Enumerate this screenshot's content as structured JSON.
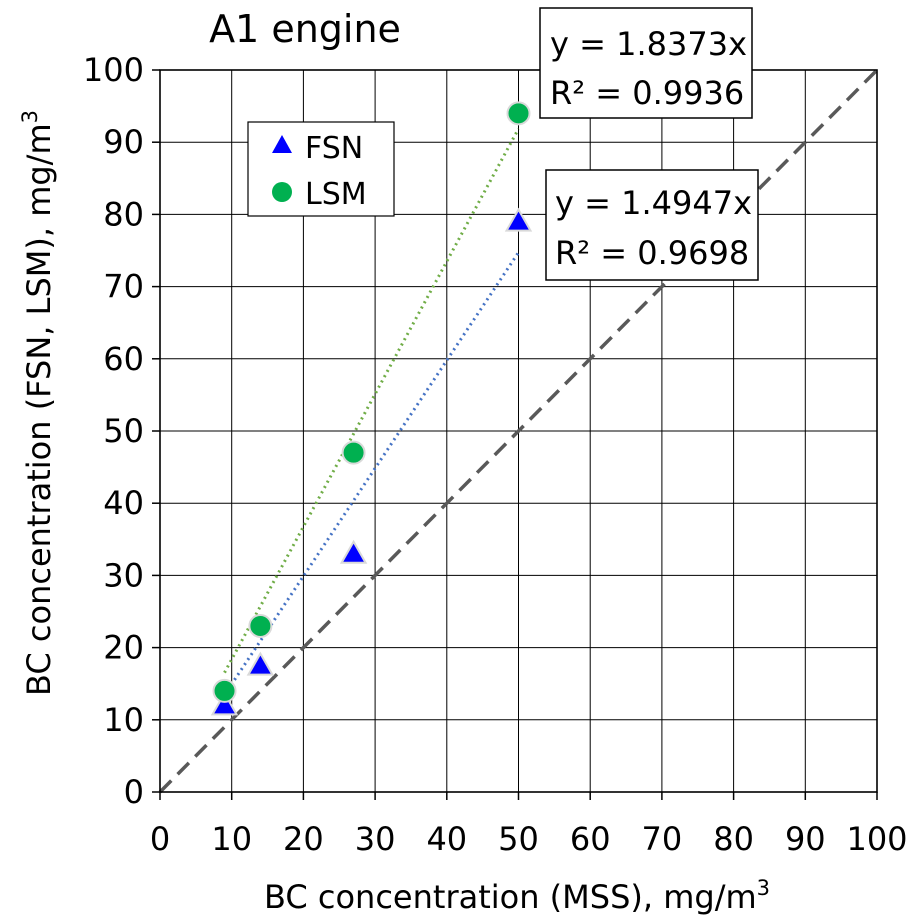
{
  "chart_data": {
    "type": "scatter",
    "title": "A1 engine",
    "xlabel": "BC concentration (MSS), mg/m",
    "xlabel_sup": "3",
    "ylabel": "BC concentration (FSN, LSM), mg/m",
    "ylabel_sup": "3",
    "xlim": [
      0,
      100
    ],
    "ylim": [
      0,
      100
    ],
    "x_ticks": [
      0,
      10,
      20,
      30,
      40,
      50,
      60,
      70,
      80,
      90,
      100
    ],
    "y_ticks": [
      0,
      10,
      20,
      30,
      40,
      50,
      60,
      70,
      80,
      90,
      100
    ],
    "grid": true,
    "legend_position": "top-left",
    "reference_line": {
      "slope": 1,
      "style": "dashed",
      "color": "#595959"
    },
    "series": [
      {
        "name": "FSN",
        "marker": "triangle",
        "color": "#0000ff",
        "trendline": {
          "slope": 1.4947,
          "color": "#4472c4",
          "style": "dotted"
        },
        "x": [
          9,
          14,
          27,
          50
        ],
        "y": [
          12,
          17.5,
          33,
          79
        ]
      },
      {
        "name": "LSM",
        "marker": "circle",
        "color": "#00b050",
        "trendline": {
          "slope": 1.8373,
          "color": "#70ad47",
          "style": "dotted"
        },
        "x": [
          9,
          14,
          27,
          50
        ],
        "y": [
          14,
          23,
          47,
          94
        ]
      }
    ],
    "annotations": [
      {
        "name": "lsm-equation",
        "line1": "y = 1.8373x",
        "line2": "R² = 0.9936"
      },
      {
        "name": "fsn-equation",
        "line1": "y = 1.4947x",
        "line2": "R² = 0.9698"
      }
    ]
  }
}
